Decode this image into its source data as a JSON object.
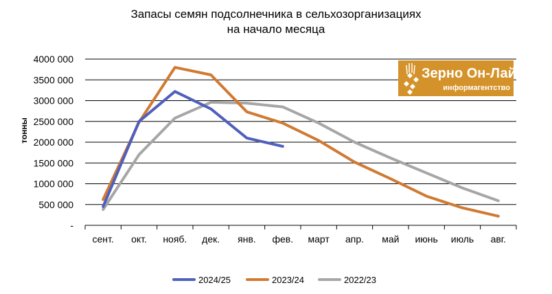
{
  "chart_data": {
    "type": "line",
    "title_lines": [
      "Запасы семян подсолнечника в сельхозорганизациях",
      "на начало месяца"
    ],
    "xlabel": "",
    "ylabel": "тонны",
    "categories": [
      "сент.",
      "окт.",
      "нояб.",
      "дек.",
      "янв.",
      "фев.",
      "март",
      "апр.",
      "май",
      "июнь",
      "июль",
      "авг."
    ],
    "y_ticks": [
      0,
      500000,
      1000000,
      1500000,
      2000000,
      2500000,
      3000000,
      3500000,
      4000000
    ],
    "y_tick_labels": [
      "-",
      "500 000",
      "1000 000",
      "1500 000",
      "2000 000",
      "2500 000",
      "3000 000",
      "3500 000",
      "4000 000"
    ],
    "ylim": [
      0,
      4000000
    ],
    "grid": "horizontal",
    "legend_position": "bottom",
    "series": [
      {
        "name": "2024/25",
        "color": "#4f5fbd",
        "values": [
          450000,
          2500000,
          3220000,
          2800000,
          2100000,
          1900000,
          null,
          null,
          null,
          null,
          null,
          null
        ]
      },
      {
        "name": "2023/24",
        "color": "#d07a32",
        "values": [
          620000,
          2480000,
          3800000,
          3620000,
          2730000,
          2460000,
          2040000,
          1520000,
          1120000,
          700000,
          420000,
          220000
        ]
      },
      {
        "name": "2022/23",
        "color": "#a6a6a6",
        "values": [
          380000,
          1700000,
          2580000,
          2960000,
          2940000,
          2850000,
          2460000,
          2000000,
          1620000,
          1260000,
          900000,
          590000
        ]
      }
    ]
  },
  "logo": {
    "name": "Зерно Он-Лайн",
    "subtitle": "информагентство",
    "color": "#d4922a",
    "icon": "wheat-icon"
  }
}
